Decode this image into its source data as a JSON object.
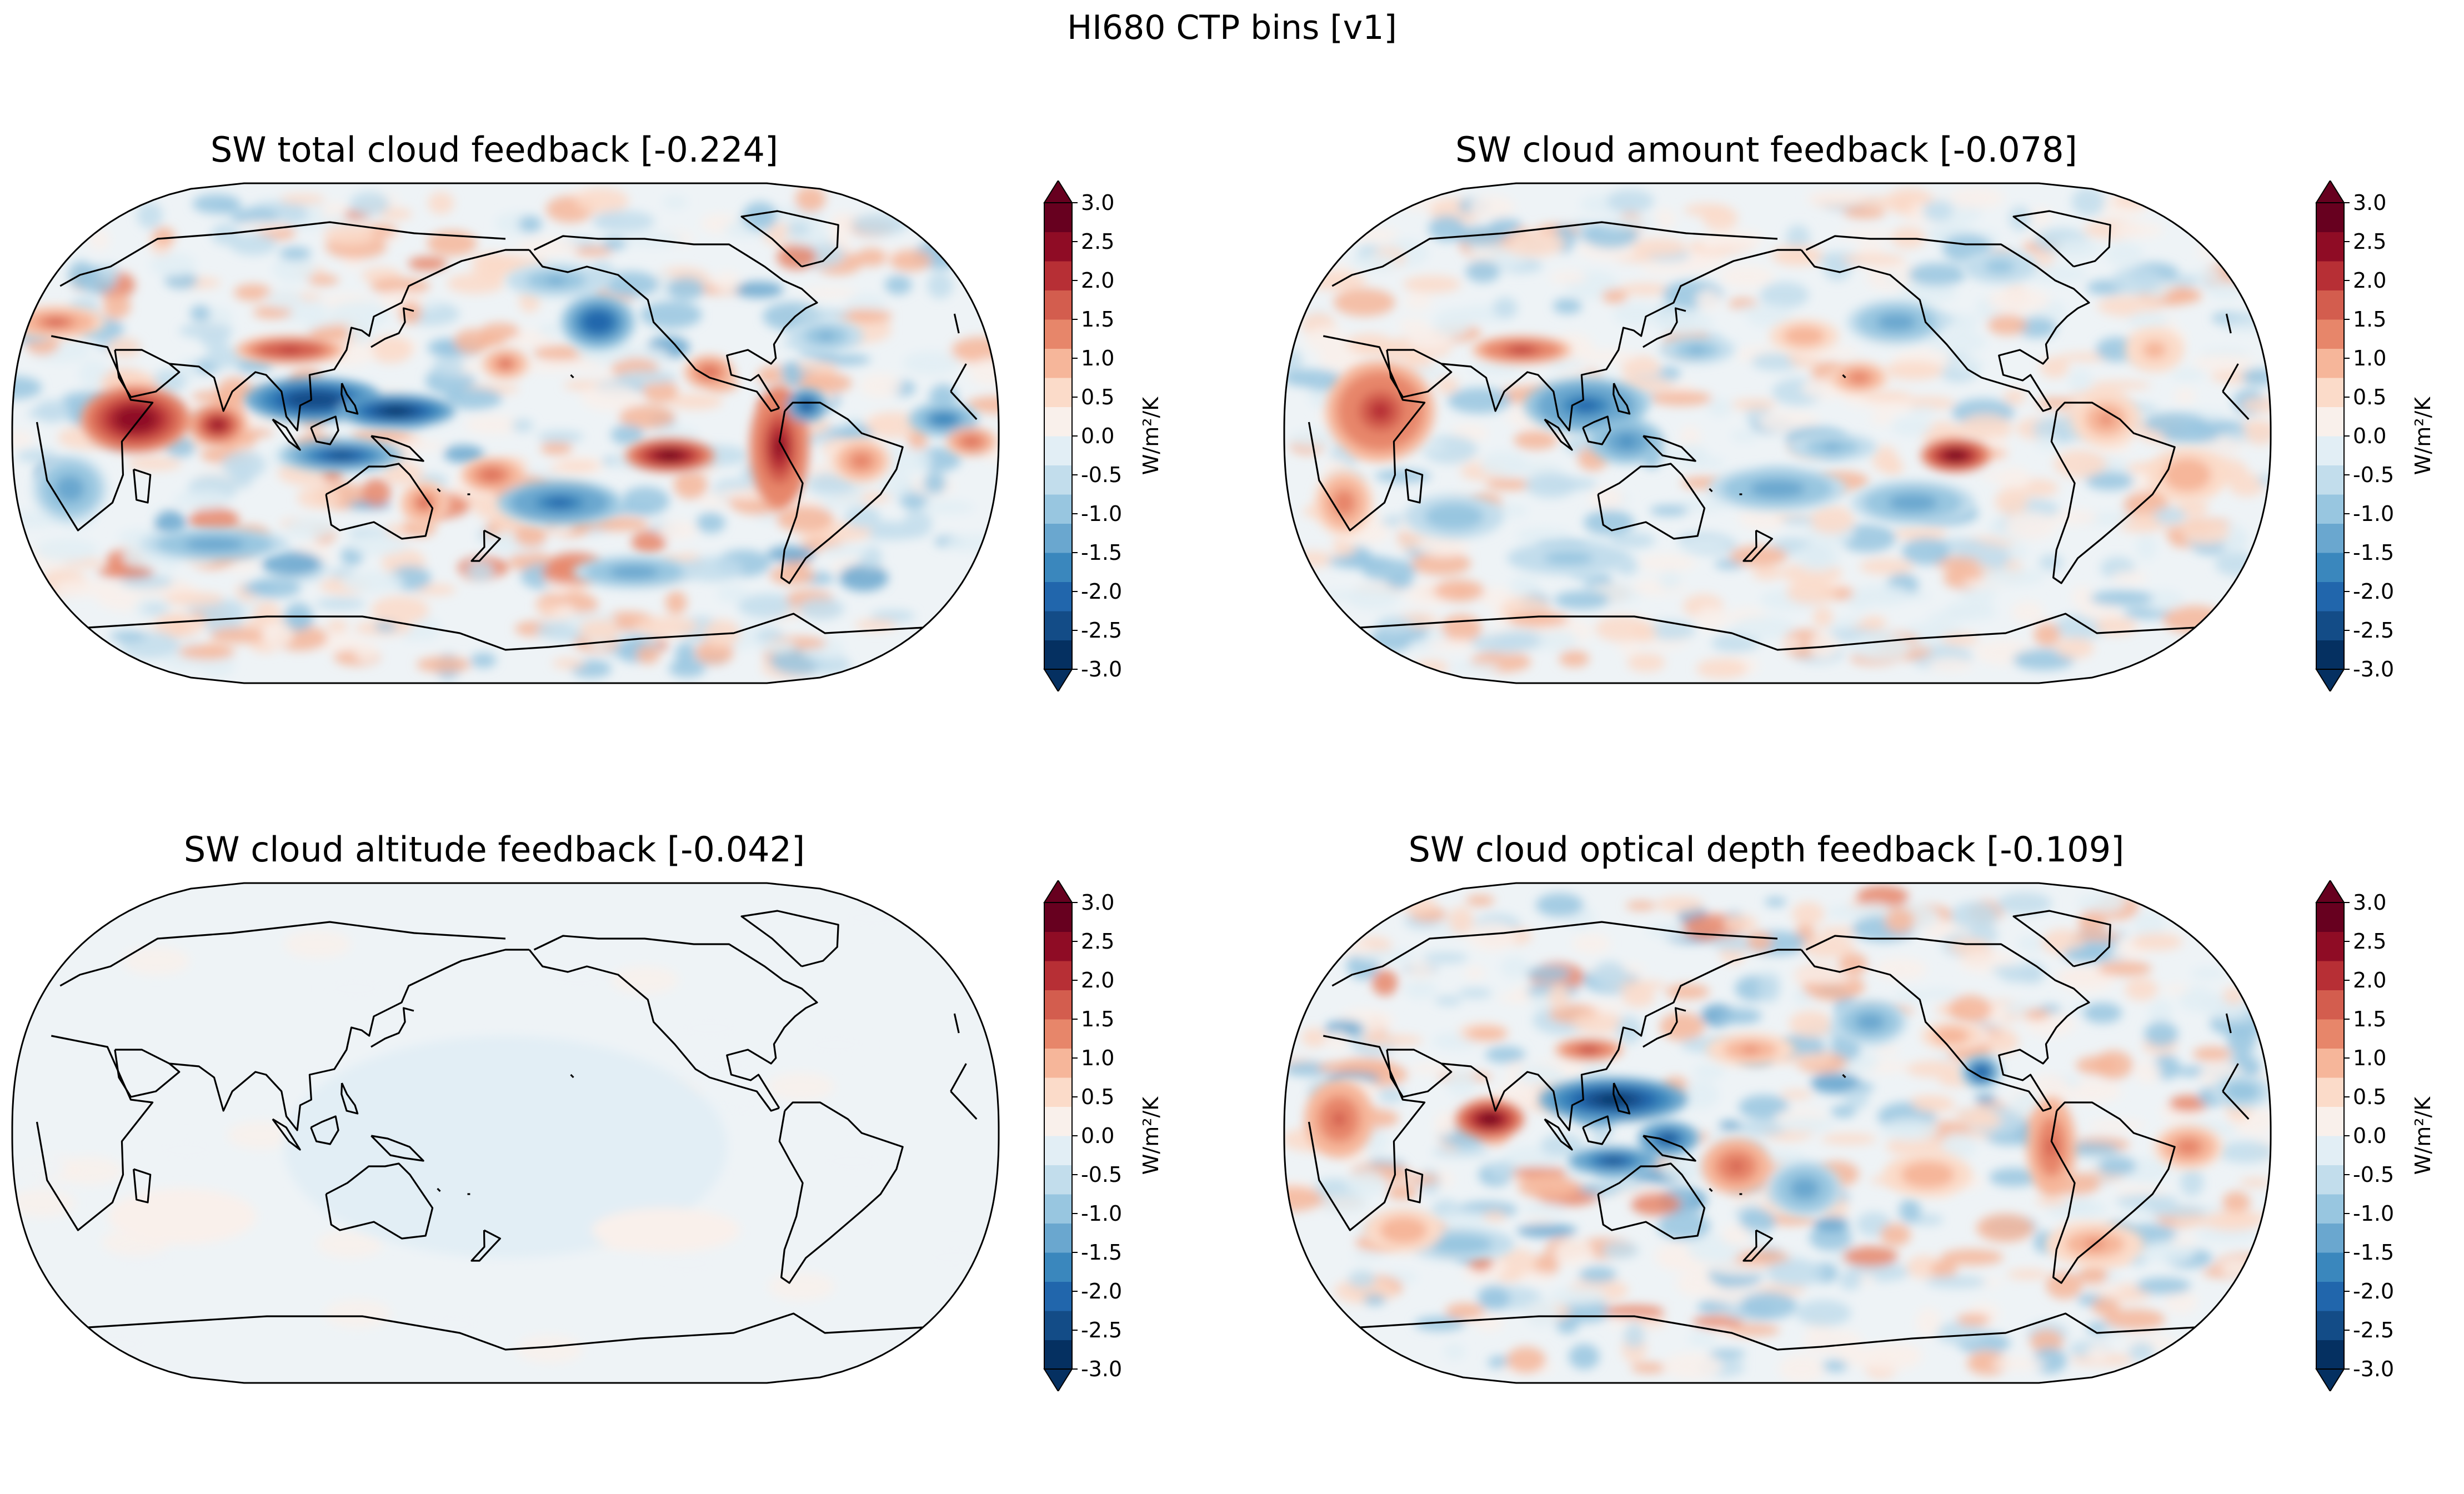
{
  "figure": {
    "suptitle": "HI680 CTP bins [v1]",
    "projection": "Robinson, centered on Pacific",
    "panels": [
      {
        "id": "total",
        "title": "SW total cloud feedback [-0.224]",
        "global_mean": -0.224,
        "pattern": "strong",
        "colorbar": {
          "label": "W/m²/K",
          "min": -3.0,
          "max": 3.0,
          "ticks": [
            "-3.0",
            "-2.5",
            "-2.0",
            "-1.5",
            "-1.0",
            "-0.5",
            "0.0",
            "0.5",
            "1.0",
            "1.5",
            "2.0",
            "2.5",
            "3.0"
          ],
          "extend": "both",
          "cmap": "RdBu_r"
        }
      },
      {
        "id": "amount",
        "title": "SW cloud amount feedback [-0.078]",
        "global_mean": -0.078,
        "pattern": "moderate",
        "colorbar": {
          "label": "W/m²/K",
          "min": -3.0,
          "max": 3.0,
          "ticks": [
            "-3.0",
            "-2.5",
            "-2.0",
            "-1.5",
            "-1.0",
            "-0.5",
            "0.0",
            "0.5",
            "1.0",
            "1.5",
            "2.0",
            "2.5",
            "3.0"
          ],
          "extend": "both",
          "cmap": "RdBu_r"
        }
      },
      {
        "id": "altitude",
        "title": "SW cloud altitude feedback [-0.042]",
        "global_mean": -0.042,
        "pattern": "flat",
        "colorbar": {
          "label": "W/m²/K",
          "min": -3.0,
          "max": 3.0,
          "ticks": [
            "-3.0",
            "-2.5",
            "-2.0",
            "-1.5",
            "-1.0",
            "-0.5",
            "0.0",
            "0.5",
            "1.0",
            "1.5",
            "2.0",
            "2.5",
            "3.0"
          ],
          "extend": "both",
          "cmap": "RdBu_r"
        }
      },
      {
        "id": "optical",
        "title": "SW cloud optical depth feedback [-0.109]",
        "global_mean": -0.109,
        "pattern": "strong-tropical",
        "colorbar": {
          "label": "W/m²/K",
          "min": -3.0,
          "max": 3.0,
          "ticks": [
            "-3.0",
            "-2.5",
            "-2.0",
            "-1.5",
            "-1.0",
            "-0.5",
            "0.0",
            "0.5",
            "1.0",
            "1.5",
            "2.0",
            "2.5",
            "3.0"
          ],
          "extend": "both",
          "cmap": "RdBu_r"
        }
      }
    ],
    "colors": {
      "cmap": [
        "#053061",
        "#134c87",
        "#2166ac",
        "#3a87bd",
        "#6aa7cf",
        "#98c6e0",
        "#c2ddec",
        "#e2eef5",
        "#f9f0eb",
        "#fbdbc9",
        "#f6b69a",
        "#e7866a",
        "#d35d4e",
        "#b72f35",
        "#8f0c25",
        "#67001f"
      ],
      "coast": "#000000",
      "background": "#ffffff"
    }
  }
}
